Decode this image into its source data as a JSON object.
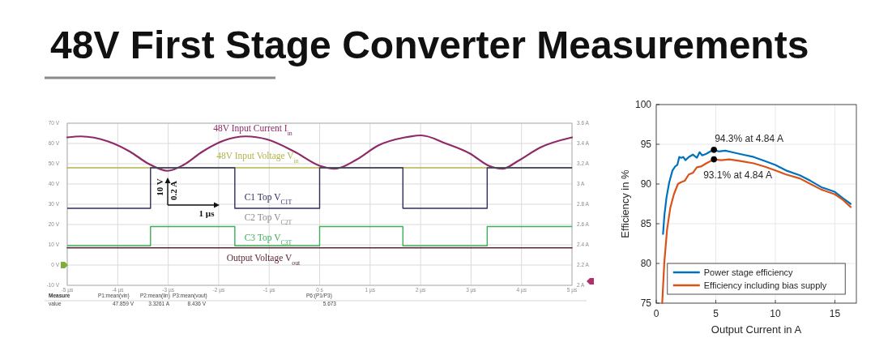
{
  "chart_data": [
    {
      "type": "line",
      "title": "48V First Stage Converter Measurements",
      "xlim": [
        -5,
        5
      ],
      "xticks": [
        {
          "value": -5,
          "label": "-5 µs"
        },
        {
          "value": -4,
          "label": "-4 µs"
        },
        {
          "value": -3,
          "label": "-3 µs"
        },
        {
          "value": -2,
          "label": "-2 µs"
        },
        {
          "value": -1,
          "label": "-1 µs"
        },
        {
          "value": 0,
          "label": "0 s"
        },
        {
          "value": 1,
          "label": "1 µs"
        },
        {
          "value": 2,
          "label": "2 µs"
        },
        {
          "value": 3,
          "label": "3 µs"
        },
        {
          "value": 4,
          "label": "4 µs"
        },
        {
          "value": 5,
          "label": "5 µs"
        }
      ],
      "ylim": [
        -10,
        70
      ],
      "yticks": [
        {
          "value": 70,
          "label": "70 V"
        },
        {
          "value": 60,
          "label": "60 V"
        },
        {
          "value": 50,
          "label": "50 V"
        },
        {
          "value": 40,
          "label": "40 V"
        },
        {
          "value": 30,
          "label": "30 V"
        },
        {
          "value": 20,
          "label": "20 V"
        },
        {
          "value": 10,
          "label": "10 V"
        },
        {
          "value": 0,
          "label": "0 V"
        },
        {
          "value": -10,
          "label": "-10 V"
        }
      ],
      "y2lim": [
        2,
        3.6
      ],
      "y2ticks": [
        {
          "value": 3.6,
          "label": "3.6 A"
        },
        {
          "value": 3.4,
          "label": "3.4 A"
        },
        {
          "value": 3.2,
          "label": "3.2 A"
        },
        {
          "value": 3,
          "label": "3 A"
        },
        {
          "value": 2.8,
          "label": "2.8 A"
        },
        {
          "value": 2.6,
          "label": "2.6 A"
        },
        {
          "value": 2.4,
          "label": "2.4 A"
        },
        {
          "value": 2.2,
          "label": "2.2 A"
        },
        {
          "value": 2,
          "label": "2 A"
        }
      ],
      "grid": true,
      "series": [
        {
          "name": "48V Input Current I$_{in}$",
          "axis": "y2",
          "color": "#8e2a66",
          "x": [
            -5,
            -4.73,
            -4.19,
            -3.76,
            -3.39,
            -3.01,
            -2.69,
            -2.32,
            -1.89,
            -1.46,
            -1.04,
            -0.5,
            0,
            0.3,
            0.73,
            1.16,
            1.69,
            2.01,
            2.5,
            2.98,
            3.35,
            3.62,
            3.94,
            4.37,
            5
          ],
          "values": [
            3.46,
            3.47,
            3.42,
            3.32,
            3.2,
            3.13,
            3.19,
            3.32,
            3.43,
            3.47,
            3.44,
            3.32,
            3.18,
            3.15,
            3.24,
            3.38,
            3.46,
            3.48,
            3.4,
            3.3,
            3.18,
            3.15,
            3.23,
            3.36,
            3.46
          ]
        },
        {
          "name": "48V Input Voltage V$_{in}$",
          "color": "#b3b34a",
          "x": [
            -5,
            5
          ],
          "values": [
            48,
            48
          ]
        },
        {
          "name": "C1 Top V$_{C1T}$",
          "type": "step",
          "color": "#2e2e5c",
          "x": [
            -5,
            -3.35,
            -1.68,
            0,
            1.65,
            3.32,
            5
          ],
          "values": [
            28,
            48,
            28,
            48,
            28,
            48,
            48
          ]
        },
        {
          "name": "C3 Top V$_{C3T}$",
          "type": "step",
          "color": "#3fae5a",
          "x": [
            -5,
            -3.35,
            -1.68,
            0,
            1.65,
            3.32,
            5
          ],
          "values": [
            9.5,
            19,
            9.5,
            19,
            9.5,
            19,
            19
          ]
        },
        {
          "name": "Output Voltage V$_{out}$",
          "color": "#5e2633",
          "x": [
            -5,
            5
          ],
          "values": [
            8.5,
            8.5
          ]
        }
      ],
      "annotations": [
        "C2 Top V$_{C2T}$",
        "10 V",
        "0.2 A",
        "1 µs",
        "Measure",
        "P1:mean(vin)",
        "P2:mean(iin)",
        "P3:mean(vout)",
        "P6:(P1/P3)",
        "value",
        "47.859 V",
        "3.3261 A",
        "8.436 V",
        "5.673"
      ]
    },
    {
      "type": "line",
      "xlabel": "Output Current in A",
      "ylabel": "Efficiency in %",
      "xlim": [
        0,
        16.8
      ],
      "xticks": [
        0,
        5,
        10,
        15
      ],
      "ylim": [
        75,
        100
      ],
      "yticks": [
        75,
        80,
        85,
        90,
        95,
        100
      ],
      "grid": true,
      "legend": "bottom",
      "series": [
        {
          "name": "Power stage efficiency",
          "color": "#0072bd",
          "x": [
            0.57,
            0.68,
            0.86,
            1.09,
            1.36,
            1.59,
            1.77,
            1.93,
            2.09,
            2.27,
            2.45,
            2.73,
            3.07,
            3.41,
            3.64,
            3.86,
            4.2,
            4.55,
            4.84,
            5.23,
            5.8,
            6.36,
            7.27,
            8.18,
            9.09,
            10,
            10.9,
            12.05,
            12.95,
            13.86,
            15,
            15.68,
            16.32
          ],
          "values": [
            83.7,
            86,
            88.3,
            90.2,
            91.7,
            92.2,
            92.4,
            93.4,
            93.3,
            93.4,
            93,
            93.4,
            93.7,
            93.3,
            94,
            93.6,
            93.8,
            94.1,
            94.3,
            94.1,
            94.2,
            94,
            93.7,
            93.4,
            92.9,
            92.4,
            91.7,
            91.1,
            90.4,
            89.6,
            89,
            88.2,
            87.5
          ]
        },
        {
          "name": "Efficiency including bias supply",
          "color": "#d95319",
          "x": [
            0.5,
            0.68,
            0.91,
            1.18,
            1.48,
            1.82,
            2.05,
            2.39,
            2.73,
            3.07,
            3.41,
            3.75,
            4.2,
            4.84,
            5.45,
            6.14,
            7.05,
            8.18,
            9.09,
            10,
            10.9,
            12.05,
            12.95,
            13.86,
            15,
            15.68,
            16.32
          ],
          "values": [
            75,
            80.2,
            84.3,
            87,
            88.7,
            90,
            90.2,
            90.4,
            91.2,
            91.4,
            92.1,
            92.2,
            92.6,
            93.1,
            93,
            93.1,
            92.9,
            92.6,
            92.2,
            91.7,
            91.2,
            90.7,
            90,
            89.3,
            88.7,
            88,
            87.1
          ]
        },
        {
          "type": "scatter",
          "marker": "circle",
          "color": "#000000",
          "x": [
            4.84,
            4.84
          ],
          "values": [
            94.3,
            93.1
          ]
        }
      ],
      "annotations": [
        {
          "text": "94.3% at 4.84 A",
          "x": 4.84,
          "y": 94.3
        },
        {
          "text": "93.1% at 4.84 A",
          "x": 4.84,
          "y": 93.1
        }
      ]
    }
  ]
}
